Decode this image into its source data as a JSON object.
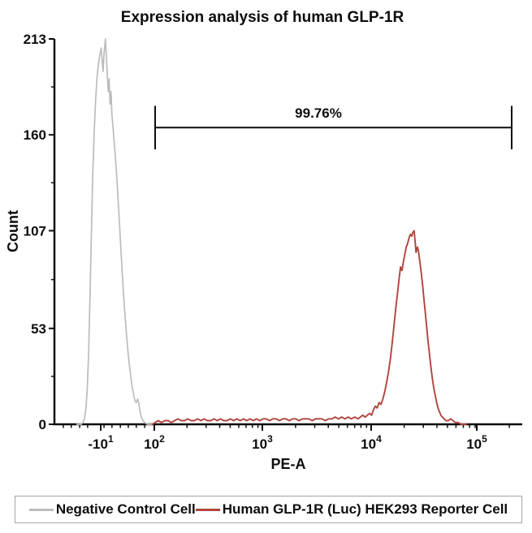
{
  "chart_data": {
    "type": "line",
    "title": "Expression analysis of human GLP-1R",
    "xlabel": "PE-A",
    "ylabel": "Count",
    "ylim": [
      0,
      213
    ],
    "x_scale": "logicle",
    "grid": false,
    "legend_position": "bottom",
    "y_ticks": [
      0,
      53,
      107,
      160,
      213
    ],
    "y_minor_ticks": [
      26.5,
      80,
      133.5,
      186.5
    ],
    "x_ticks": [
      {
        "base": "-10",
        "exp": "1",
        "pos": 0.099
      },
      {
        "base": "10",
        "exp": "2",
        "pos": 0.2135
      },
      {
        "base": "10",
        "exp": "3",
        "pos": 0.4444
      },
      {
        "base": "10",
        "exp": "4",
        "pos": 0.677
      },
      {
        "base": "10",
        "exp": "5",
        "pos": 0.9028
      }
    ],
    "x_minor_pos": [
      0.019,
      0.036,
      0.054,
      0.071,
      0.106,
      0.123,
      0.141,
      0.158,
      0.175,
      0.193,
      0.2834,
      0.3243,
      0.3533,
      0.3757,
      0.3941,
      0.4097,
      0.4231,
      0.4351,
      0.5154,
      0.5564,
      0.5854,
      0.6078,
      0.6262,
      0.6418,
      0.6552,
      0.6672,
      0.7476,
      0.7886,
      0.8176,
      0.84,
      0.8583,
      0.874,
      0.8874,
      0.8993,
      0.9724
    ],
    "gate": {
      "label": "99.76%",
      "from_pos": 0.2153,
      "to_pos": 0.9774,
      "count": 164,
      "cap_half_counts": 12,
      "label_pos": 0.564
    },
    "series": [
      {
        "name": "Negative Control Cell",
        "color": "#bcbcbc",
        "peak_channel": "~0 (between -10^1 and 10^1)",
        "peak_count": 213,
        "points": [
          [
            0.048,
            0
          ],
          [
            0.057,
            0
          ],
          [
            0.061,
            1
          ],
          [
            0.064,
            3
          ],
          [
            0.067,
            8
          ],
          [
            0.07,
            18
          ],
          [
            0.073,
            38
          ],
          [
            0.076,
            70
          ],
          [
            0.079,
            105
          ],
          [
            0.082,
            138
          ],
          [
            0.085,
            162
          ],
          [
            0.088,
            179
          ],
          [
            0.091,
            191
          ],
          [
            0.094,
            199
          ],
          [
            0.097,
            204
          ],
          [
            0.1,
            208
          ],
          [
            0.102,
            201
          ],
          [
            0.104,
            195
          ],
          [
            0.106,
            205
          ],
          [
            0.109,
            213
          ],
          [
            0.111,
            204
          ],
          [
            0.113,
            193
          ],
          [
            0.115,
            184
          ],
          [
            0.117,
            191
          ],
          [
            0.119,
            177
          ],
          [
            0.121,
            184
          ],
          [
            0.123,
            171
          ],
          [
            0.125,
            165
          ],
          [
            0.127,
            158
          ],
          [
            0.13,
            149
          ],
          [
            0.133,
            138
          ],
          [
            0.136,
            125
          ],
          [
            0.139,
            111
          ],
          [
            0.142,
            97
          ],
          [
            0.145,
            84
          ],
          [
            0.148,
            71
          ],
          [
            0.151,
            60
          ],
          [
            0.154,
            50
          ],
          [
            0.157,
            41
          ],
          [
            0.16,
            33
          ],
          [
            0.163,
            27
          ],
          [
            0.166,
            21
          ],
          [
            0.169,
            17
          ],
          [
            0.172,
            13
          ],
          [
            0.175,
            12
          ],
          [
            0.178,
            14
          ],
          [
            0.18,
            12
          ],
          [
            0.183,
            7
          ],
          [
            0.186,
            4
          ],
          [
            0.189,
            2
          ],
          [
            0.193,
            1
          ],
          [
            0.199,
            0
          ],
          [
            0.208,
            0
          ]
        ]
      },
      {
        "name": "Human GLP-1R (Luc) HEK293 Reporter Cell",
        "color": "#b0453d",
        "peak_channel": "~2.5x10^4",
        "peak_count": 107,
        "points": [
          [
            0.21,
            0
          ],
          [
            0.215,
            1
          ],
          [
            0.222,
            2
          ],
          [
            0.229,
            1
          ],
          [
            0.236,
            2
          ],
          [
            0.243,
            2
          ],
          [
            0.25,
            1
          ],
          [
            0.257,
            2
          ],
          [
            0.264,
            3
          ],
          [
            0.271,
            2
          ],
          [
            0.278,
            2
          ],
          [
            0.285,
            3
          ],
          [
            0.292,
            2
          ],
          [
            0.299,
            2
          ],
          [
            0.306,
            3
          ],
          [
            0.313,
            2
          ],
          [
            0.32,
            3
          ],
          [
            0.327,
            2
          ],
          [
            0.334,
            2
          ],
          [
            0.341,
            3
          ],
          [
            0.348,
            2
          ],
          [
            0.355,
            3
          ],
          [
            0.362,
            2
          ],
          [
            0.369,
            2
          ],
          [
            0.376,
            3
          ],
          [
            0.383,
            2
          ],
          [
            0.39,
            3
          ],
          [
            0.397,
            2
          ],
          [
            0.404,
            3
          ],
          [
            0.411,
            2
          ],
          [
            0.418,
            3
          ],
          [
            0.425,
            2
          ],
          [
            0.432,
            3
          ],
          [
            0.439,
            2
          ],
          [
            0.446,
            3
          ],
          [
            0.453,
            3
          ],
          [
            0.46,
            2
          ],
          [
            0.467,
            3
          ],
          [
            0.474,
            3
          ],
          [
            0.481,
            2
          ],
          [
            0.488,
            3
          ],
          [
            0.495,
            3
          ],
          [
            0.502,
            2
          ],
          [
            0.509,
            3
          ],
          [
            0.516,
            3
          ],
          [
            0.523,
            2
          ],
          [
            0.53,
            3
          ],
          [
            0.537,
            3
          ],
          [
            0.544,
            3
          ],
          [
            0.551,
            2
          ],
          [
            0.558,
            3
          ],
          [
            0.565,
            3
          ],
          [
            0.572,
            3
          ],
          [
            0.579,
            2
          ],
          [
            0.586,
            3
          ],
          [
            0.593,
            3
          ],
          [
            0.6,
            4
          ],
          [
            0.607,
            3
          ],
          [
            0.614,
            4
          ],
          [
            0.621,
            3
          ],
          [
            0.628,
            4
          ],
          [
            0.635,
            3
          ],
          [
            0.642,
            4
          ],
          [
            0.649,
            3
          ],
          [
            0.654,
            4
          ],
          [
            0.659,
            5
          ],
          [
            0.664,
            4
          ],
          [
            0.669,
            5
          ],
          [
            0.674,
            6
          ],
          [
            0.678,
            5
          ],
          [
            0.682,
            8
          ],
          [
            0.686,
            10
          ],
          [
            0.69,
            9
          ],
          [
            0.694,
            12
          ],
          [
            0.698,
            11
          ],
          [
            0.702,
            14
          ],
          [
            0.706,
            18
          ],
          [
            0.71,
            23
          ],
          [
            0.714,
            29
          ],
          [
            0.718,
            36
          ],
          [
            0.722,
            45
          ],
          [
            0.726,
            55
          ],
          [
            0.73,
            65
          ],
          [
            0.734,
            74
          ],
          [
            0.737,
            81
          ],
          [
            0.74,
            87
          ],
          [
            0.743,
            85
          ],
          [
            0.746,
            90
          ],
          [
            0.749,
            94
          ],
          [
            0.752,
            98
          ],
          [
            0.755,
            100
          ],
          [
            0.758,
            103
          ],
          [
            0.761,
            105
          ],
          [
            0.764,
            104
          ],
          [
            0.766,
            106
          ],
          [
            0.769,
            107
          ],
          [
            0.771,
            101
          ],
          [
            0.773,
            95
          ],
          [
            0.776,
            98
          ],
          [
            0.778,
            96
          ],
          [
            0.781,
            90
          ],
          [
            0.784,
            84
          ],
          [
            0.787,
            77
          ],
          [
            0.79,
            69
          ],
          [
            0.793,
            61
          ],
          [
            0.796,
            53
          ],
          [
            0.799,
            45
          ],
          [
            0.802,
            38
          ],
          [
            0.805,
            31
          ],
          [
            0.808,
            25
          ],
          [
            0.811,
            20
          ],
          [
            0.814,
            16
          ],
          [
            0.817,
            12
          ],
          [
            0.82,
            9
          ],
          [
            0.823,
            7
          ],
          [
            0.826,
            5
          ],
          [
            0.829,
            4
          ],
          [
            0.833,
            3
          ],
          [
            0.837,
            2
          ],
          [
            0.842,
            2
          ],
          [
            0.847,
            3
          ],
          [
            0.852,
            2
          ],
          [
            0.857,
            1
          ],
          [
            0.863,
            1
          ],
          [
            0.87,
            0
          ],
          [
            0.88,
            0
          ]
        ]
      }
    ]
  },
  "legend": {
    "items": [
      {
        "label": "Negative Control Cell",
        "color": "#bcbcbc"
      },
      {
        "label": "Human GLP-1R (Luc) HEK293 Reporter Cell",
        "color": "#b0453d"
      }
    ]
  },
  "colors": {
    "axis": "#0d0d0d",
    "gate": "#0d0d0d",
    "legend_border": "#a6a6a6"
  }
}
